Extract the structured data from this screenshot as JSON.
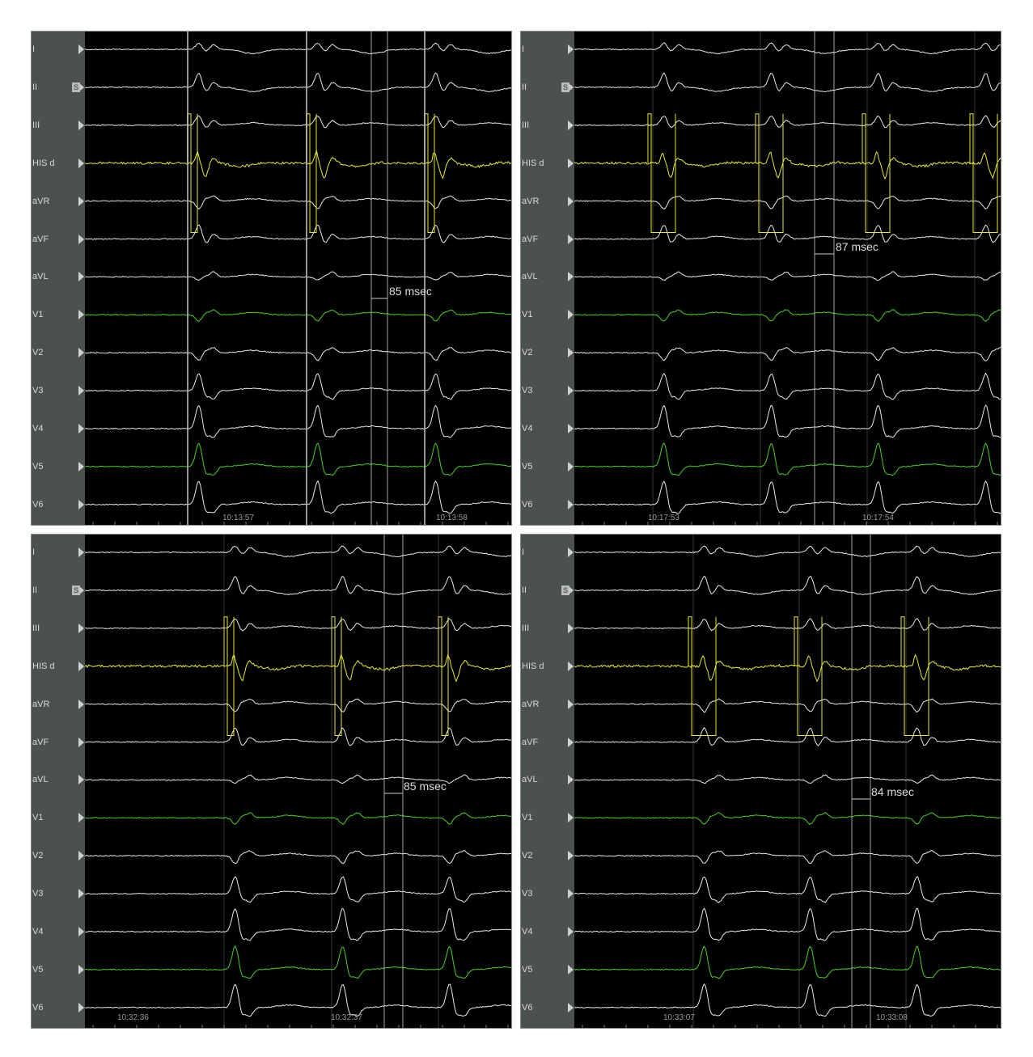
{
  "leads": [
    "I",
    "II",
    "III",
    "HIS d",
    "aVR",
    "aVF",
    "aVL",
    "V1",
    "V2",
    "V3",
    "V4",
    "V5",
    "V6"
  ],
  "lead_colors": {
    "HIS d": "#e8e830",
    "V1": "#46d21e",
    "V5": "#46d21e",
    "default": "#e8e8e8"
  },
  "sync_marker": "S",
  "panels": [
    {
      "timestamps": [
        "10:13:57",
        "10:13:58"
      ],
      "measurement": "85 msec"
    },
    {
      "timestamps": [
        "10:17:53",
        "10:17:54"
      ],
      "measurement": "87 msec"
    },
    {
      "timestamps": [
        "10:32:36",
        "10:32:37"
      ],
      "measurement": "85 msec"
    },
    {
      "timestamps": [
        "10:33:07",
        "10:33:08"
      ],
      "measurement": "84 msec"
    }
  ]
}
